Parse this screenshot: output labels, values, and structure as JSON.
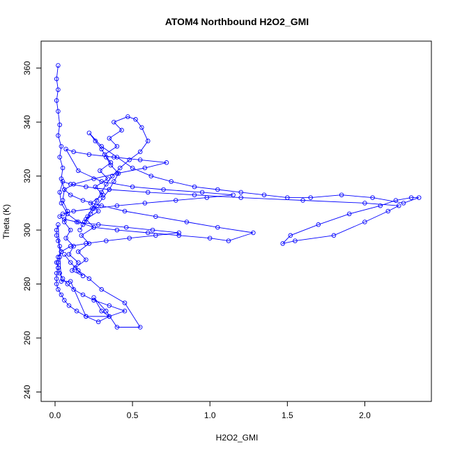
{
  "chart_data": {
    "type": "scatter",
    "title": "ATOM4 Northbound H2O2_GMI",
    "xlabel": "H2O2_GMI",
    "ylabel": "Theta (K)",
    "xlim": [
      -0.09,
      2.43
    ],
    "ylim": [
      236.5,
      370
    ],
    "xticks": [
      0.0,
      0.5,
      1.0,
      1.5,
      2.0
    ],
    "xtick_labels": [
      "0.0",
      "0.5",
      "1.0",
      "1.5",
      "2.0"
    ],
    "yticks": [
      240,
      260,
      280,
      300,
      320,
      340,
      360
    ],
    "ytick_labels": [
      "240",
      "260",
      "280",
      "300",
      "320",
      "340",
      "360"
    ],
    "grid": false,
    "legend": "none",
    "series": [
      {
        "style": "points-and-lines",
        "color": "#0000ff",
        "x": [
          0.02,
          0.01,
          0.02,
          0.01,
          0.02,
          0.03,
          0.02,
          0.04,
          0.03,
          0.05,
          0.04,
          0.06,
          0.05,
          0.08,
          0.06,
          0.1,
          0.07,
          0.12,
          0.09,
          0.15,
          0.11,
          0.18,
          0.13,
          0.2,
          0.15,
          0.22,
          0.17,
          0.25,
          0.2,
          0.28,
          0.23,
          0.31,
          0.26,
          0.34,
          0.29,
          0.36,
          0.32,
          0.4,
          0.35,
          0.43,
          0.38,
          0.47,
          0.52,
          0.56,
          0.6,
          0.55,
          0.48,
          0.42,
          0.37,
          0.33,
          0.3,
          0.27,
          0.24,
          0.21,
          0.18,
          0.16,
          0.19,
          0.23,
          0.27,
          0.31,
          0.35,
          0.38,
          0.41,
          0.36,
          0.33,
          0.3,
          0.26,
          0.22,
          0.3,
          0.4,
          0.5,
          0.62,
          0.75,
          0.9,
          1.05,
          1.2,
          1.35,
          1.5,
          1.65,
          1.85,
          2.05,
          2.25,
          2.35,
          2.3,
          2.2,
          2.1,
          1.9,
          1.7,
          1.52,
          1.47,
          1.55,
          1.8,
          2.0,
          2.15,
          2.22,
          2.0,
          1.6,
          1.2,
          0.9,
          0.6,
          0.35,
          0.2,
          0.1,
          0.05,
          0.03,
          0.04,
          0.08,
          0.15,
          0.25,
          0.4,
          0.6,
          0.8,
          1.0,
          1.12,
          1.28,
          1.05,
          0.85,
          0.65,
          0.45,
          0.3,
          0.18,
          0.1,
          0.06,
          0.12,
          0.25,
          0.4,
          0.58,
          0.72,
          0.55,
          0.38,
          0.22,
          0.12,
          0.07,
          0.15,
          0.3,
          0.5,
          0.7,
          0.95,
          1.15,
          0.98,
          0.78,
          0.58,
          0.4,
          0.25,
          0.12,
          0.05,
          0.03,
          0.06,
          0.14,
          0.28,
          0.46,
          0.63,
          0.8,
          0.65,
          0.48,
          0.33,
          0.2,
          0.1,
          0.04,
          0.02,
          0.01,
          0.02,
          0.03,
          0.05,
          0.08,
          0.12,
          0.18,
          0.25,
          0.35,
          0.45,
          0.35,
          0.28,
          0.2,
          0.14,
          0.09,
          0.06,
          0.04,
          0.02,
          0.01,
          0.01,
          0.01,
          0.02,
          0.02,
          0.03,
          0.04,
          0.03,
          0.02,
          0.01,
          0.01,
          0.02,
          0.04,
          0.1,
          0.2,
          0.35,
          0.3,
          0.25,
          0.33,
          0.4,
          0.55,
          0.45,
          0.3,
          0.22,
          0.15,
          0.1,
          0.06
        ],
        "y": [
          361,
          356,
          352,
          348,
          344,
          339,
          335,
          331,
          327,
          323,
          319,
          315,
          311,
          307,
          303,
          300,
          297,
          294,
          291,
          288,
          285,
          283,
          286,
          289,
          292,
          295,
          298,
          301,
          304,
          307,
          310,
          313,
          316,
          319,
          322,
          325,
          328,
          331,
          334,
          337,
          340,
          342,
          341,
          338,
          333,
          329,
          326,
          323,
          320,
          317,
          314,
          311,
          308,
          305,
          302,
          300,
          303,
          306,
          309,
          312,
          315,
          318,
          321,
          324,
          327,
          330,
          333,
          336,
          331,
          327,
          323,
          320,
          318,
          316,
          315,
          314,
          313,
          312,
          312,
          313,
          312,
          310,
          312,
          312,
          311,
          309,
          306,
          302,
          298,
          295,
          296,
          298,
          303,
          307,
          309,
          310,
          311,
          312,
          313,
          314,
          315,
          316,
          317,
          318,
          314,
          310,
          306,
          303,
          301,
          300,
          299,
          298,
          297,
          296,
          299,
          301,
          303,
          305,
          307,
          309,
          311,
          313,
          315,
          317,
          319,
          321,
          323,
          325,
          326,
          327,
          328,
          329,
          330,
          322,
          318,
          316,
          315,
          314,
          313,
          312,
          311,
          310,
          309,
          308,
          307,
          306,
          305,
          304,
          303,
          302,
          301,
          300,
          299,
          298,
          297,
          296,
          295,
          294,
          292,
          290,
          288,
          286,
          284,
          282,
          280,
          278,
          276,
          274,
          272,
          270,
          268,
          266,
          268,
          270,
          272,
          274,
          276,
          278,
          280,
          282,
          284,
          286,
          288,
          290,
          292,
          294,
          296,
          298,
          300,
          302,
          281,
          281,
          268,
          268,
          270,
          275,
          270,
          264,
          264,
          273,
          278,
          282,
          285,
          288,
          291
        ]
      }
    ]
  }
}
